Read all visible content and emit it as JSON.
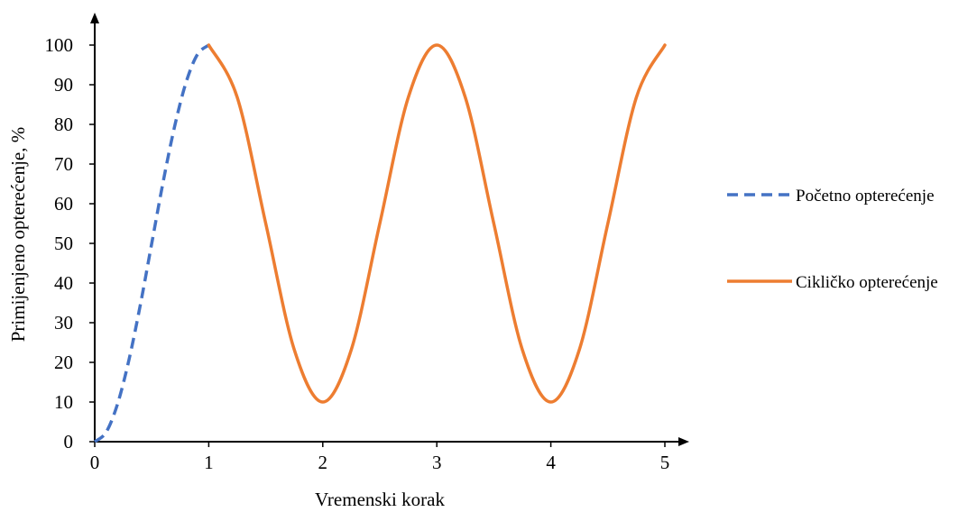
{
  "chart_data": {
    "type": "line",
    "title": "",
    "xlabel": "Vremenski korak",
    "ylabel": "Primijenjeno opterećenje, %",
    "xlim": [
      0,
      5
    ],
    "ylim": [
      0,
      100
    ],
    "x_ticks": [
      0,
      1,
      2,
      3,
      4,
      5
    ],
    "y_ticks": [
      0,
      10,
      20,
      30,
      40,
      50,
      60,
      70,
      80,
      90,
      100
    ],
    "grid": false,
    "legend_position": "right",
    "series": [
      {
        "name": "Početno opterećenje",
        "color": "#4472C4",
        "dash": "dashed",
        "x": [
          0,
          0.1,
          0.2,
          0.3,
          0.4,
          0.5,
          0.6,
          0.7,
          0.8,
          0.9,
          1.0
        ],
        "y": [
          0,
          2.4,
          9.5,
          20.6,
          34.5,
          50.0,
          65.5,
          79.4,
          90.5,
          97.6,
          100
        ]
      },
      {
        "name": "Cikličko opterećenje",
        "color": "#ED7D31",
        "dash": "solid",
        "x": [
          1.0,
          1.25,
          1.5,
          1.75,
          2.0,
          2.25,
          2.5,
          2.75,
          3.0,
          3.25,
          3.5,
          3.75,
          4.0,
          4.25,
          4.5,
          4.75,
          5.0
        ],
        "y": [
          100,
          86.8,
          55.0,
          23.2,
          10,
          23.2,
          55.0,
          86.8,
          100,
          86.8,
          55.0,
          23.2,
          10,
          23.2,
          55.0,
          86.8,
          100
        ]
      }
    ]
  }
}
